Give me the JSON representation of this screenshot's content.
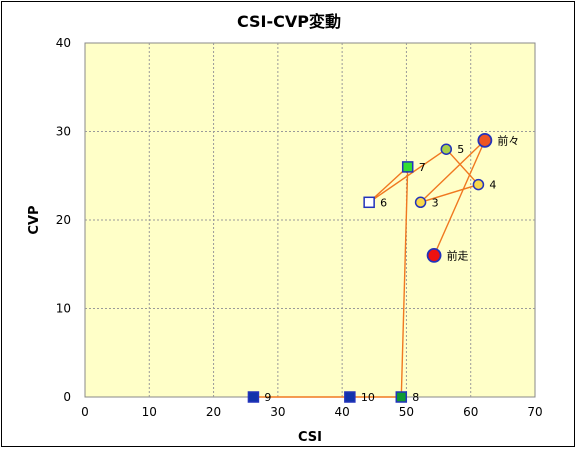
{
  "chart_data": {
    "type": "scatter",
    "title": "CSI-CVP変動",
    "xlabel": "CSI",
    "ylabel": "CVP",
    "xlim": [
      0,
      70
    ],
    "ylim": [
      0,
      40
    ],
    "x_ticks": [
      "0",
      "10",
      "20",
      "30",
      "40",
      "50",
      "60",
      "70"
    ],
    "y_ticks": [
      "0",
      "10",
      "20",
      "30",
      "40"
    ],
    "grid": true,
    "plot_background": "#ffffc8",
    "line_color": "#f07820",
    "points": [
      {
        "label": "前走",
        "x": 54.3,
        "y": 16,
        "shape": "circle-large",
        "fill": "#ee1111",
        "stroke": "#2233bb"
      },
      {
        "label": "前々",
        "x": 62.2,
        "y": 29,
        "shape": "circle-large",
        "fill": "#ee5522",
        "stroke": "#2233bb"
      },
      {
        "label": "3",
        "x": 52.2,
        "y": 22,
        "shape": "circle",
        "fill": "#f8d84a",
        "stroke": "#2233bb"
      },
      {
        "label": "4",
        "x": 61.2,
        "y": 24,
        "shape": "circle",
        "fill": "#f8d84a",
        "stroke": "#2233bb"
      },
      {
        "label": "5",
        "x": 56.2,
        "y": 28,
        "shape": "circle",
        "fill": "#a8d048",
        "stroke": "#2233bb"
      },
      {
        "label": "6",
        "x": 44.2,
        "y": 22,
        "shape": "square",
        "fill": "#ffffff",
        "stroke": "#2233bb"
      },
      {
        "label": "7",
        "x": 50.2,
        "y": 26,
        "shape": "square",
        "fill": "#33dd33",
        "stroke": "#2233bb"
      },
      {
        "label": "8",
        "x": 49.2,
        "y": 0,
        "shape": "square",
        "fill": "#119933",
        "stroke": "#2233bb"
      },
      {
        "label": "9",
        "x": 26.2,
        "y": 0,
        "shape": "square",
        "fill": "#1133aa",
        "stroke": "#2233bb"
      },
      {
        "label": "10",
        "x": 41.2,
        "y": 0,
        "shape": "square",
        "fill": "#1133aa",
        "stroke": "#2233bb"
      }
    ]
  }
}
